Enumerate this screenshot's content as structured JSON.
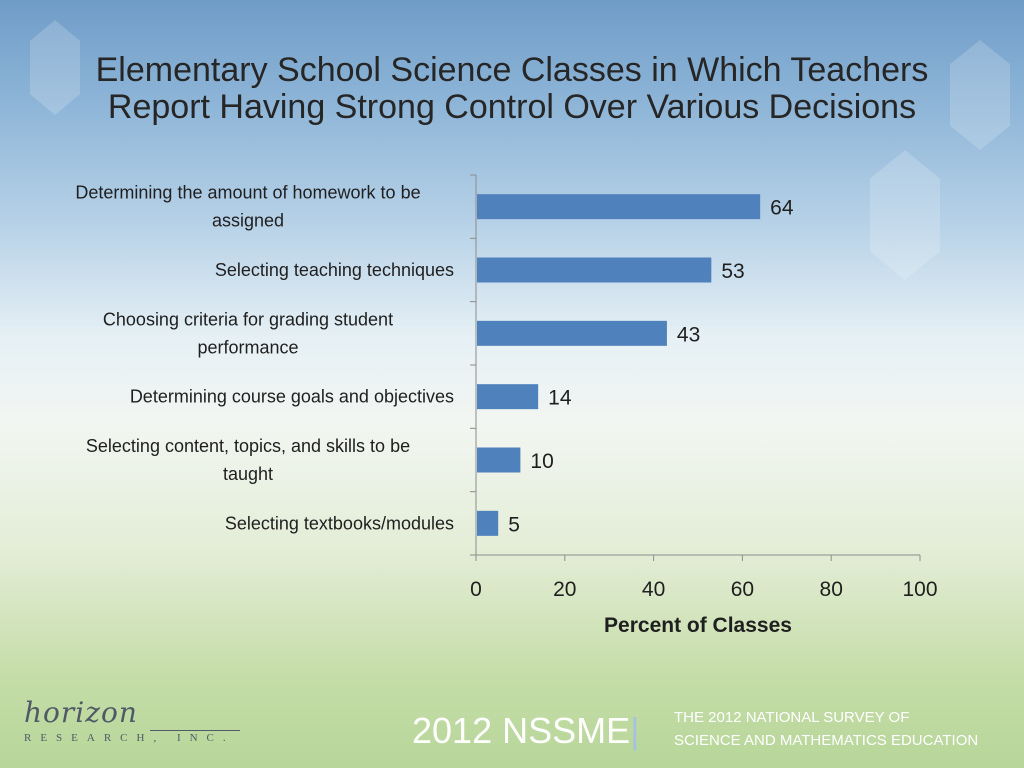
{
  "title": {
    "line1": "Elementary School Science Classes in Which Teachers",
    "line2": "Report Having Strong Control Over Various Decisions"
  },
  "chart_data": {
    "type": "bar",
    "orientation": "horizontal",
    "categories": [
      [
        "Determining the amount of homework to be",
        "assigned"
      ],
      [
        "Selecting teaching techniques"
      ],
      [
        "Choosing criteria for grading student",
        "performance"
      ],
      [
        "Determining course goals and objectives"
      ],
      [
        "Selecting content, topics, and skills to be",
        "taught"
      ],
      [
        "Selecting textbooks/modules"
      ]
    ],
    "values": [
      64,
      53,
      43,
      14,
      10,
      5
    ],
    "xlim": [
      0,
      100
    ],
    "xticks": [
      0,
      20,
      40,
      60,
      80,
      100
    ],
    "xlabel": "Percent of Classes",
    "bar_color": "#4f81bd"
  },
  "footer": {
    "logo_main": "horizon",
    "logo_sub": "RESEARCH, INC.",
    "nssme": "2012 NSSME",
    "nssme_bar": "|",
    "survey_line1": "THE 2012 NATIONAL SURVEY OF",
    "survey_line2": "SCIENCE AND MATHEMATICS EDUCATION"
  }
}
